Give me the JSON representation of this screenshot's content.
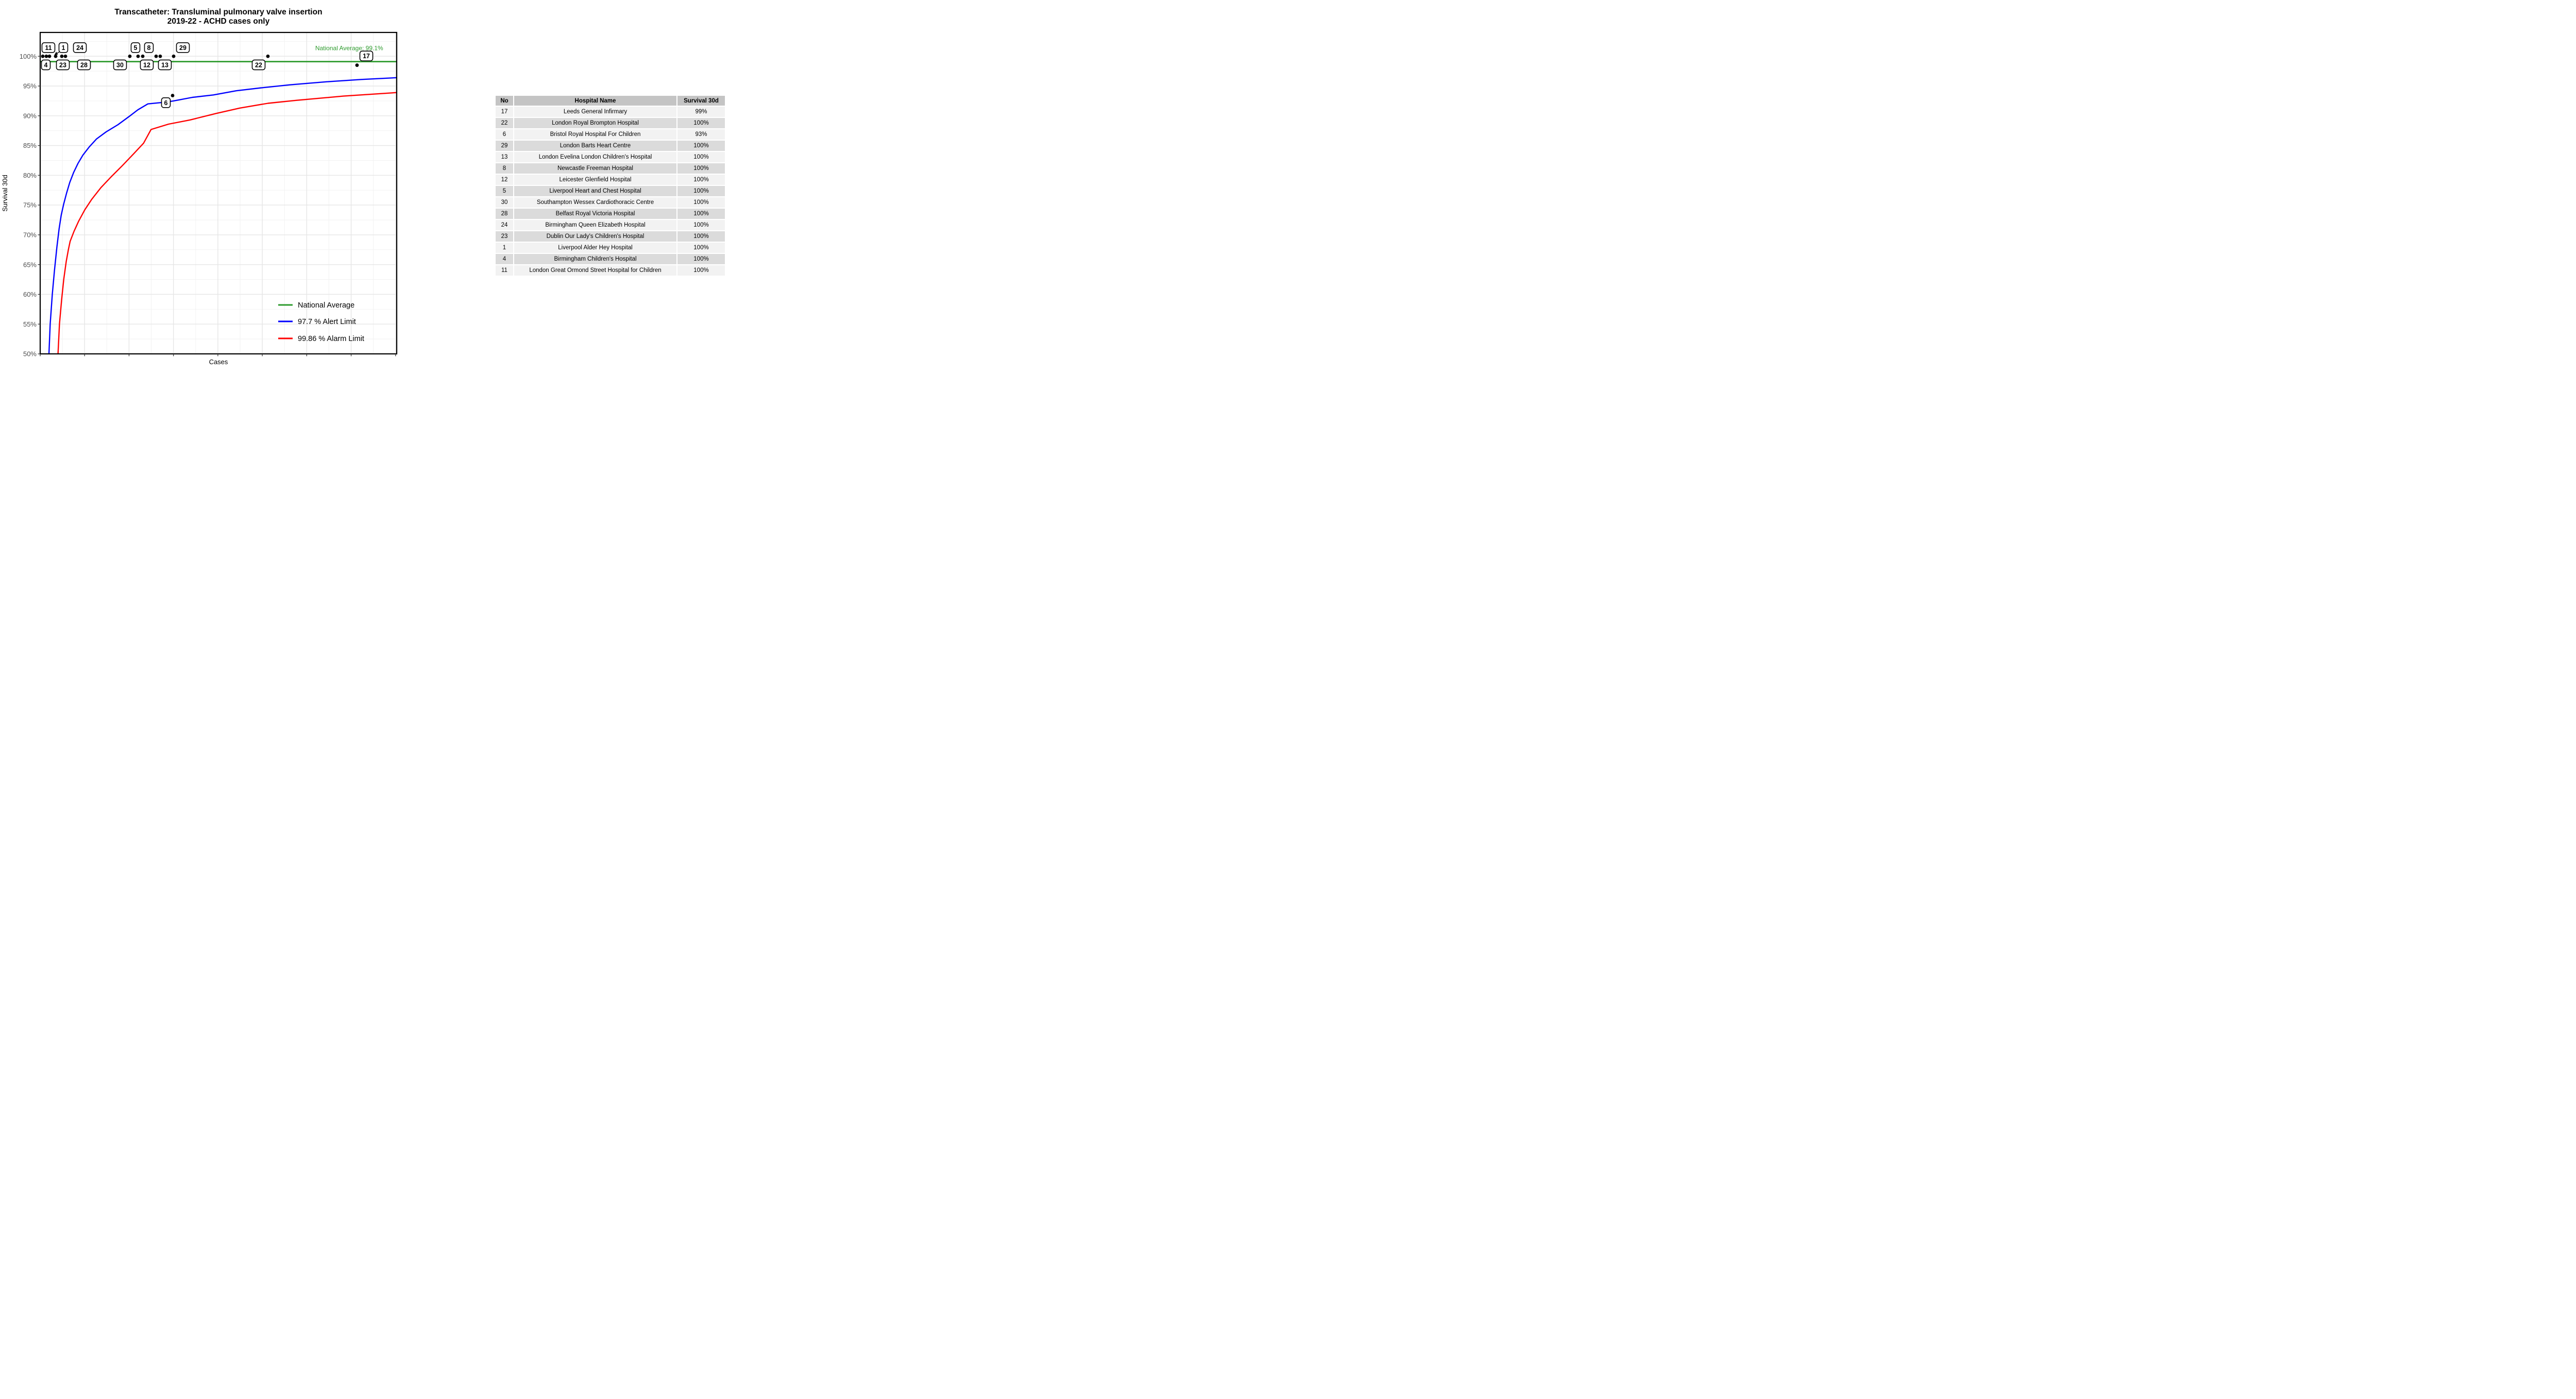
{
  "title": {
    "line1": "Transcatheter: Transluminal pulmonary valve insertion",
    "line2": "2019-22 - ACHD cases only"
  },
  "chart_data": {
    "type": "scatter",
    "title": "Transcatheter: Transluminal pulmonary valve insertion 2019-22 - ACHD cases only",
    "xlabel": "Cases",
    "ylabel": "Survival 30d",
    "ylim": [
      50,
      104
    ],
    "grid": "on",
    "legend_position": "inside bottom-right",
    "y_ticks": [
      {
        "value": 100,
        "label": "100%"
      },
      {
        "value": 95,
        "label": "95%"
      },
      {
        "value": 90,
        "label": "90%"
      },
      {
        "value": 85,
        "label": "85%"
      },
      {
        "value": 80,
        "label": "80%"
      },
      {
        "value": 75,
        "label": "75%"
      },
      {
        "value": 70,
        "label": "70%"
      },
      {
        "value": 65,
        "label": "65%"
      },
      {
        "value": 60,
        "label": "60%"
      },
      {
        "value": 55,
        "label": "55%"
      },
      {
        "value": 50,
        "label": "50%"
      }
    ],
    "national_average": {
      "value": 99.1,
      "annotation": "National Average: 99.1%",
      "color": "#2e9b2e"
    },
    "series": [
      {
        "name": "National Average",
        "type": "hline",
        "color": "#2e9b2e",
        "value": 99.1
      },
      {
        "name": "97.7 %  Alert Limit",
        "type": "curve",
        "color": "#0000ff",
        "points": [
          [
            0.0246,
            50
          ],
          [
            0.028,
            55
          ],
          [
            0.034,
            60
          ],
          [
            0.04,
            64
          ],
          [
            0.047,
            68
          ],
          [
            0.053,
            71
          ],
          [
            0.059,
            73.3
          ],
          [
            0.066,
            75.2
          ],
          [
            0.074,
            77
          ],
          [
            0.083,
            78.8
          ],
          [
            0.094,
            80.5
          ],
          [
            0.106,
            82
          ],
          [
            0.12,
            83.4
          ],
          [
            0.138,
            84.8
          ],
          [
            0.158,
            86.1
          ],
          [
            0.185,
            87.3
          ],
          [
            0.218,
            88.5
          ],
          [
            0.25,
            89.9
          ],
          [
            0.274,
            91
          ],
          [
            0.302,
            92
          ],
          [
            0.353,
            92.3
          ],
          [
            0.374,
            92.5
          ],
          [
            0.427,
            93.1
          ],
          [
            0.486,
            93.5
          ],
          [
            0.55,
            94.2
          ],
          [
            0.62,
            94.7
          ],
          [
            0.7,
            95.2
          ],
          [
            0.8,
            95.7
          ],
          [
            0.9,
            96.1
          ],
          [
            1.0,
            96.4
          ]
        ]
      },
      {
        "name": "99.86 %  Alarm Limit",
        "type": "curve",
        "color": "#ff0000",
        "points": [
          [
            0.05,
            50
          ],
          [
            0.054,
            55
          ],
          [
            0.06,
            59
          ],
          [
            0.066,
            62.5
          ],
          [
            0.073,
            65.5
          ],
          [
            0.079,
            67.5
          ],
          [
            0.084,
            68.9
          ],
          [
            0.095,
            70.6
          ],
          [
            0.108,
            72.3
          ],
          [
            0.125,
            74.2
          ],
          [
            0.145,
            76
          ],
          [
            0.17,
            77.9
          ],
          [
            0.2,
            79.8
          ],
          [
            0.23,
            81.6
          ],
          [
            0.262,
            83.6
          ],
          [
            0.29,
            85.4
          ],
          [
            0.311,
            87.7
          ],
          [
            0.36,
            88.6
          ],
          [
            0.42,
            89.3
          ],
          [
            0.494,
            90.4
          ],
          [
            0.56,
            91.3
          ],
          [
            0.639,
            92.1
          ],
          [
            0.72,
            92.6
          ],
          [
            0.85,
            93.3
          ],
          [
            1.0,
            93.9
          ]
        ]
      }
    ],
    "points": [
      {
        "x": 0.0072,
        "y": 100
      },
      {
        "x": 0.0173,
        "y": 100
      },
      {
        "x": 0.026,
        "y": 100
      },
      {
        "x": 0.0434,
        "y": 100
      },
      {
        "x": 0.0607,
        "y": 100
      },
      {
        "x": 0.0708,
        "y": 100
      },
      {
        "x": 0.2514,
        "y": 100
      },
      {
        "x": 0.2746,
        "y": 100
      },
      {
        "x": 0.2876,
        "y": 100
      },
      {
        "x": 0.3252,
        "y": 100
      },
      {
        "x": 0.3367,
        "y": 100
      },
      {
        "x": 0.3743,
        "y": 100
      },
      {
        "x": 0.6387,
        "y": 100,
        "hospital_no": "22"
      },
      {
        "x": 0.8887,
        "y": 98.5,
        "hospital_no": "17"
      },
      {
        "x": 0.3714,
        "y": 93.4,
        "hospital_no": "6"
      }
    ],
    "point_labels": [
      {
        "text": "11",
        "x": 0.0231,
        "y": 101.45
      },
      {
        "text": "1",
        "x": 0.065,
        "y": 101.45
      },
      {
        "text": "24",
        "x": 0.1113,
        "y": 101.45
      },
      {
        "text": "5",
        "x": 0.2673,
        "y": 101.45
      },
      {
        "text": "8",
        "x": 0.3049,
        "y": 101.45
      },
      {
        "text": "29",
        "x": 0.4003,
        "y": 101.45
      },
      {
        "text": "17",
        "x": 0.9148,
        "y": 100.05
      },
      {
        "text": "4",
        "x": 0.0159,
        "y": 98.55
      },
      {
        "text": "23",
        "x": 0.0636,
        "y": 98.55
      },
      {
        "text": "28",
        "x": 0.1228,
        "y": 98.55
      },
      {
        "text": "30",
        "x": 0.224,
        "y": 98.55
      },
      {
        "text": "12",
        "x": 0.2991,
        "y": 98.55
      },
      {
        "text": "13",
        "x": 0.3497,
        "y": 98.55
      },
      {
        "text": "22",
        "x": 0.6127,
        "y": 98.55
      },
      {
        "text": "6",
        "x": 0.3526,
        "y": 92.2
      }
    ],
    "arrow": {
      "from": [
        0.059,
        100.9
      ],
      "to": [
        0.0405,
        100.28
      ]
    },
    "legend": {
      "entries": [
        {
          "label": "National Average",
          "color": "#2e9b2e"
        },
        {
          "label": "97.7 %  Alert Limit",
          "color": "#0000ff"
        },
        {
          "label": "99.86 %  Alarm Limit",
          "color": "#ff0000"
        }
      ]
    },
    "colors": {
      "axis": "#000000",
      "tick_label": "#4d4d4d",
      "grid_major": "#e6e6e6",
      "grid_minor": "#f2f2f2",
      "point": "#000000"
    }
  },
  "table": {
    "columns": [
      "No",
      "Hospital Name",
      "Survival 30d"
    ],
    "rows": [
      [
        "17",
        "Leeds General Infirmary",
        "99%"
      ],
      [
        "22",
        "London Royal Brompton Hospital",
        "100%"
      ],
      [
        "6",
        "Bristol Royal Hospital For Children",
        "93%"
      ],
      [
        "29",
        "London Barts Heart Centre",
        "100%"
      ],
      [
        "13",
        "London Evelina London Children's Hospital",
        "100%"
      ],
      [
        "8",
        "Newcastle Freeman Hospital",
        "100%"
      ],
      [
        "12",
        "Leicester Glenfield Hospital",
        "100%"
      ],
      [
        "5",
        "Liverpool Heart and Chest Hospital",
        "100%"
      ],
      [
        "30",
        "Southampton Wessex Cardiothoracic Centre",
        "100%"
      ],
      [
        "28",
        "Belfast Royal Victoria Hospital",
        "100%"
      ],
      [
        "24",
        "Birmingham Queen Elizabeth Hospital",
        "100%"
      ],
      [
        "23",
        "Dublin Our Lady's Children's Hospital",
        "100%"
      ],
      [
        "1",
        "Liverpool Alder Hey Hospital",
        "100%"
      ],
      [
        "4",
        "Birmingham Children's Hospital",
        "100%"
      ],
      [
        "11",
        "London Great Ormond Street Hospital for Children",
        "100%"
      ]
    ]
  }
}
